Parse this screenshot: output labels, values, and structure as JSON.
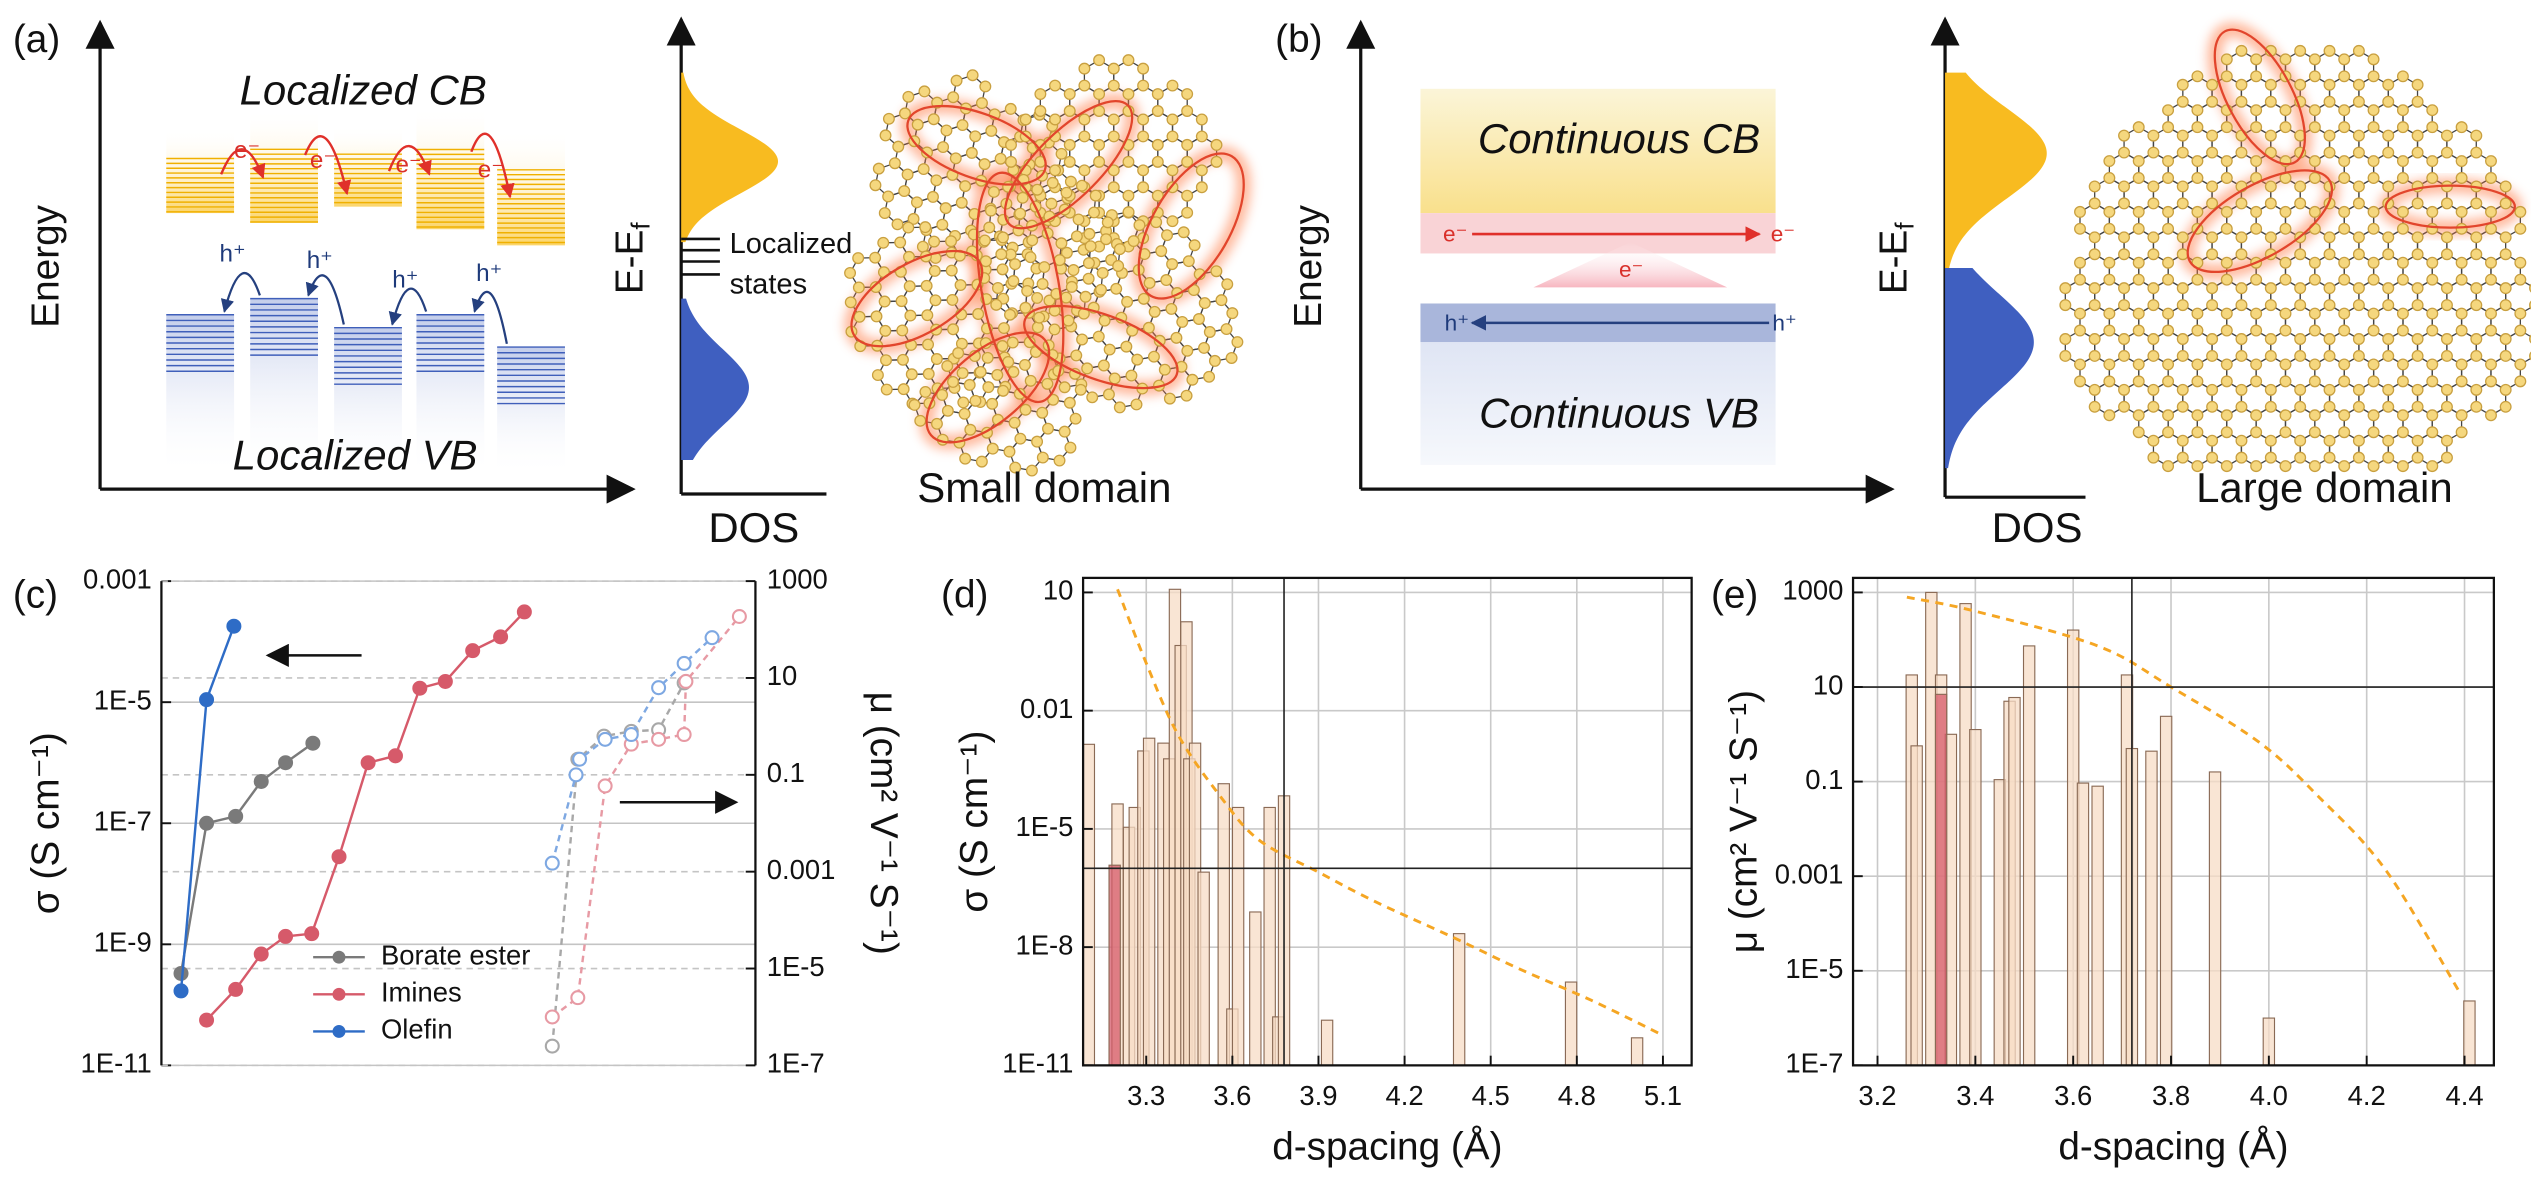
{
  "panel_a": {
    "label": "(a)",
    "energy_label": "Energy",
    "cb_label": "Localized CB",
    "vb_label": "Localized VB",
    "electrons": [
      "e⁻",
      "e⁻",
      "e⁻",
      "e⁻"
    ],
    "holes": [
      "h⁺",
      "h⁺",
      "h⁺",
      "h⁺"
    ],
    "dos_ylabel": "E-E",
    "dos_ylabel_sub": "f",
    "states_label": [
      "Localized",
      "states"
    ],
    "dos_xlabel": "DOS",
    "domain_label": "Small domain"
  },
  "panel_b": {
    "label": "(b)",
    "energy_label": "Energy",
    "cb_label": "Continuous CB",
    "vb_label": "Continuous VB",
    "electrons": [
      "e⁻",
      "e⁻",
      "e⁻"
    ],
    "holes": [
      "h⁺",
      "h⁺"
    ],
    "dos_ylabel": "E-E",
    "dos_ylabel_sub": "f",
    "dos_xlabel": "DOS",
    "domain_label": "Large domain"
  },
  "chart_data": [
    {
      "type": "line",
      "label": "(c)",
      "ylabel": "σ (S cm⁻¹)",
      "y2label": "μ (cm² V⁻¹ S⁻¹)",
      "xlim": [
        0,
        100
      ],
      "ylog": true,
      "ylim": [
        1e-11,
        0.001
      ],
      "yticks": [
        {
          "value": 1e-11,
          "label": "1E-11"
        },
        {
          "value": 1e-09,
          "label": "1E-9"
        },
        {
          "value": 1e-07,
          "label": "1E-7"
        },
        {
          "value": 1e-05,
          "label": "1E-5"
        },
        0.001
      ],
      "y2log": true,
      "y2lim": [
        1e-07,
        1000
      ],
      "y2ticks": [
        {
          "value": 1e-07,
          "label": "1E-7"
        },
        {
          "value": 1e-05,
          "label": "1E-5"
        },
        0.001,
        0.1,
        10,
        1000
      ],
      "grid": true,
      "legend": "lower center",
      "series": [
        {
          "name": "Borate ester",
          "color": "#7a7a7a",
          "marker": "filled",
          "linestyle": "solid",
          "x": [
            3.3,
            7.6,
            12.5,
            16.8,
            20.9,
            25.5
          ],
          "values": [
            3.3e-10,
            1e-07,
            1.3e-07,
            4.9e-07,
            1e-06,
            2.1e-06
          ]
        },
        {
          "name": "Imines",
          "color": "#d65a6a",
          "marker": "filled",
          "linestyle": "solid",
          "x": [
            7.6,
            12.5,
            16.8,
            20.9,
            25.3,
            29.9,
            34.8,
            39.4,
            43.5,
            47.8,
            52.4,
            57.1,
            61.1
          ],
          "values": [
            5.6e-11,
            1.8e-10,
            6.9e-10,
            1.35e-09,
            1.5e-09,
            2.8e-08,
            1e-06,
            1.3e-06,
            1.7e-05,
            2.2e-05,
            7.1e-05,
            0.00012,
            0.00031
          ]
        },
        {
          "name": "Olefin",
          "color": "#2e6cc6",
          "marker": "filled",
          "linestyle": "solid",
          "x": [
            3.3,
            7.6,
            12.2
          ],
          "values": [
            1.7e-10,
            1.1e-05,
            0.00018
          ]
        },
        {
          "color": "#a8a8a8",
          "marker": "open",
          "linestyle": "dashed",
          "axis": "y2",
          "x": [
            65.8,
            70.1,
            74.5,
            79.1,
            83.7,
            88.0
          ],
          "values": [
            2.5e-07,
            0.21,
            0.63,
            0.79,
            0.85,
            7.9
          ]
        },
        {
          "color": "#e79aa4",
          "marker": "open",
          "linestyle": "dashed",
          "axis": "y2",
          "x": [
            65.8,
            70.1,
            74.7,
            79.1,
            83.7,
            88.0,
            88.3,
            97.3
          ],
          "values": [
            1e-06,
            2.5e-06,
            0.059,
            0.43,
            0.54,
            0.68,
            8.5,
            186
          ]
        },
        {
          "color": "#7ea8e2",
          "marker": "open",
          "linestyle": "dashed",
          "axis": "y2",
          "x": [
            65.8,
            69.8,
            70.4,
            74.7,
            79.1,
            83.7,
            88.0,
            92.7
          ],
          "values": [
            0.0015,
            0.1,
            0.21,
            0.54,
            0.68,
            6.3,
            20,
            68
          ]
        }
      ]
    },
    {
      "type": "bar",
      "label": "(d)",
      "xlabel": "d-spacing (Å)",
      "ylabel": "σ (S cm⁻¹)",
      "xlim": [
        3.08,
        5.2
      ],
      "xticks": [
        3.3,
        3.6,
        3.9,
        4.2,
        4.5,
        4.8,
        5.1
      ],
      "ylog": true,
      "ylim": [
        1e-11,
        10
      ],
      "yticks": [
        {
          "value": 1e-11,
          "label": "1E-11"
        },
        {
          "value": 1e-08,
          "label": "1E-8"
        },
        {
          "value": 1e-05,
          "label": "1E-5"
        },
        0.01,
        10
      ],
      "grid": true,
      "series": [
        {
          "color": "#f7dcc6",
          "x": [
            3.1,
            3.2,
            3.24,
            3.26,
            3.29,
            3.31,
            3.36,
            3.38,
            3.4,
            3.42,
            3.44,
            3.45,
            3.47,
            3.5,
            3.57,
            3.6,
            3.62,
            3.68,
            3.73,
            3.76,
            3.78,
            3.93,
            4.39,
            4.78,
            5.01
          ],
          "values": [
            0.0014,
            4.3e-05,
            1.1e-05,
            3.5e-05,
            0.00095,
            0.002,
            0.0015,
            0.0006,
            12,
            0.45,
            1.8,
            0.0006,
            0.0015,
            8e-07,
            0.00014,
            2.7e-10,
            3.5e-05,
            7.8e-08,
            3.5e-05,
            1.7e-10,
            6.9e-05,
            1.4e-10,
            2.2e-08,
            1.3e-09,
            5e-11
          ]
        },
        {
          "color": "#d65a6a",
          "x": [
            3.19
          ],
          "values": [
            1.2e-06
          ]
        }
      ],
      "fit": {
        "color": "#f5a623",
        "x": [
          3.2,
          3.3,
          3.41,
          3.55,
          3.69,
          3.9,
          4.1,
          4.36,
          4.6,
          4.85,
          5.09
        ],
        "values": [
          12,
          0.16,
          0.0025,
          8e-05,
          5.4e-06,
          8e-07,
          1.4e-07,
          1.9e-08,
          2.8e-09,
          4.5e-10,
          6.3e-11
        ]
      },
      "crosshair": {
        "x": 3.78,
        "y": 1e-06
      }
    },
    {
      "type": "bar",
      "label": "(e)",
      "xlabel": "d-spacing (Å)",
      "ylabel": "μ (cm² V⁻¹ S⁻¹)",
      "xlim": [
        3.15,
        4.46
      ],
      "xticks": [
        3.2,
        3.4,
        3.6,
        3.8,
        {
          "value": 4,
          "label": "4.0"
        },
        4.2,
        4.4
      ],
      "ylog": true,
      "ylim": [
        1e-07,
        1000
      ],
      "yticks": [
        {
          "value": 1e-07,
          "label": "1E-7"
        },
        {
          "value": 1e-05,
          "label": "1E-5"
        },
        0.001,
        0.1,
        10,
        1000
      ],
      "grid": true,
      "series": [
        {
          "color": "#f7dcc6",
          "x": [
            3.27,
            3.28,
            3.31,
            3.33,
            3.35,
            3.38,
            3.4,
            3.45,
            3.47,
            3.48,
            3.51,
            3.6,
            3.62,
            3.65,
            3.71,
            3.72,
            3.76,
            3.79,
            3.89,
            4.0,
            4.41
          ],
          "values": [
            18,
            0.57,
            1000,
            18,
            1,
            580,
            1.26,
            0.11,
            5,
            6,
            74,
            160,
            0.093,
            0.08,
            18,
            0.5,
            0.44,
            2.4,
            0.16,
            1e-06,
            2.3e-06
          ]
        },
        {
          "color": "#d65a6a",
          "x": [
            3.33
          ],
          "values": [
            7
          ]
        }
      ],
      "fit": {
        "color": "#f5a623",
        "x": [
          3.26,
          3.4,
          3.65,
          3.8,
          3.98,
          4.1,
          4.24,
          4.39
        ],
        "values": [
          794,
          400,
          74,
          10,
          0.68,
          0.05,
          0.0013,
          3.5e-06
        ]
      },
      "crosshair": {
        "x": 3.72,
        "y": 10
      }
    }
  ]
}
